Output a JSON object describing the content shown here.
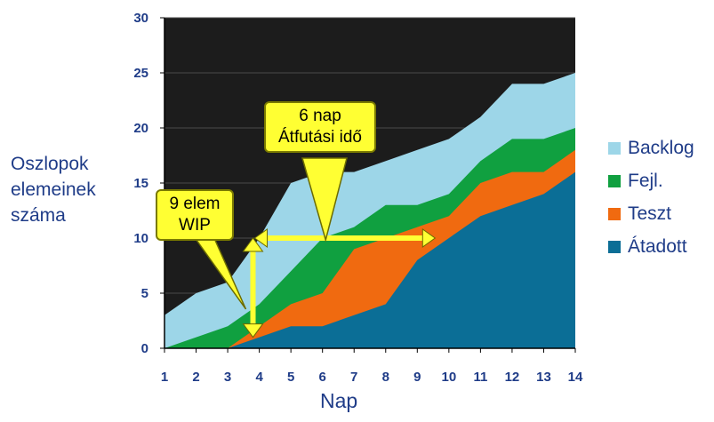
{
  "chart_data": {
    "type": "area",
    "stacked": true,
    "x": [
      1,
      2,
      3,
      4,
      5,
      6,
      7,
      8,
      9,
      10,
      11,
      12,
      13,
      14
    ],
    "xlabel": "Nap",
    "ylabel_lines": [
      "Oszlopok",
      "elemeinek",
      "száma"
    ],
    "ylim": [
      0,
      30
    ],
    "yticks": [
      0,
      5,
      10,
      15,
      20,
      25,
      30
    ],
    "grid": true,
    "legend_position": "right",
    "series": [
      {
        "name": "Backlog",
        "color": "#9DD6E8",
        "cumulative": [
          3,
          5,
          6,
          10,
          15,
          16,
          16,
          17,
          18,
          19,
          21,
          24,
          24,
          25
        ]
      },
      {
        "name": "Fejl.",
        "color": "#10A040",
        "cumulative": [
          0,
          1,
          2,
          4,
          7,
          10,
          11,
          13,
          13,
          14,
          17,
          19,
          19,
          20
        ]
      },
      {
        "name": "Teszt",
        "color": "#F06A10",
        "cumulative": [
          0,
          0,
          0,
          2,
          4,
          5,
          9,
          10,
          11,
          12,
          15,
          16,
          16,
          18
        ]
      },
      {
        "name": "Átadott",
        "color": "#0B6E96",
        "cumulative": [
          0,
          0,
          0,
          1,
          2,
          2,
          3,
          4,
          8,
          10,
          12,
          13,
          14,
          16
        ]
      }
    ],
    "annotations": [
      {
        "lines": [
          "9 elem",
          "WIP"
        ],
        "marks": "vertical arrow from 1 to 10 at day 3.8"
      },
      {
        "lines": [
          "6 nap",
          "Átfutási idő"
        ],
        "marks": "horizontal arrow at 10 from day 3.8 to day 10"
      }
    ]
  }
}
